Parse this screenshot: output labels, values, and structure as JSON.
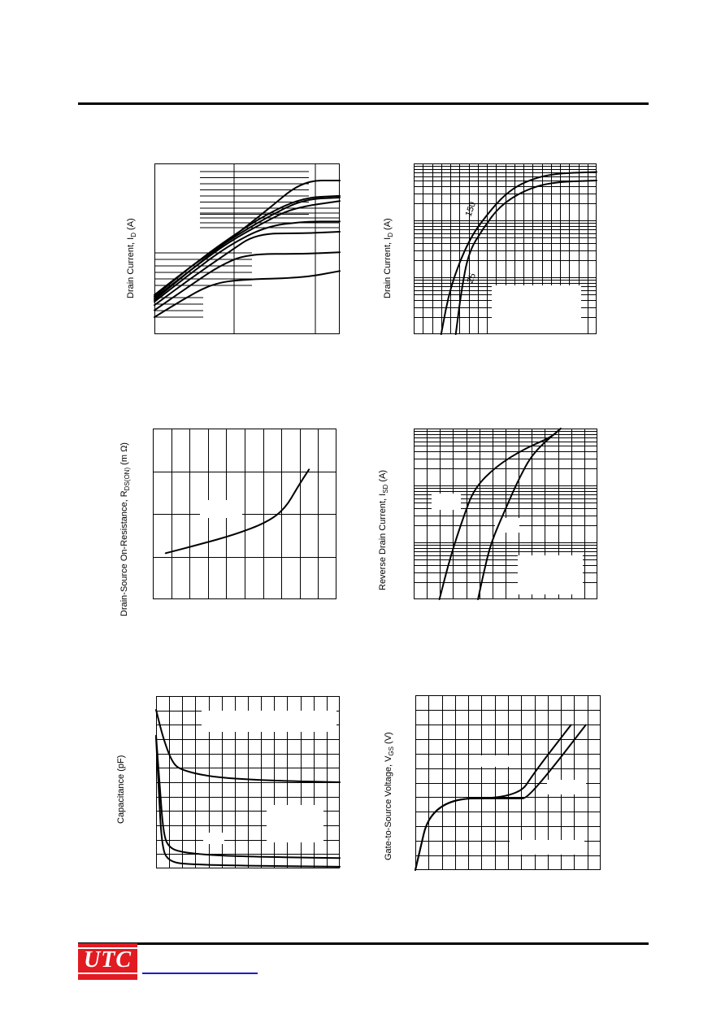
{
  "brand": {
    "logo_text": "UTC",
    "logo_color": "#e21a22",
    "link_color": "#1a1ad6"
  },
  "chart_data": [
    {
      "type": "line",
      "ylabel": "Drain Current, I",
      "ylabel_sub": "D",
      "ylabel_unit": " (A)",
      "xscale": "log",
      "yscale": "log",
      "grid": true,
      "series": [
        {
          "points": [
            [
              0,
              0.8
            ],
            [
              0.2,
              0.62
            ],
            [
              0.4,
              0.45
            ],
            [
              0.6,
              0.28
            ],
            [
              0.8,
              0.1
            ],
            [
              1,
              0.1
            ]
          ]
        },
        {
          "points": [
            [
              0,
              0.78
            ],
            [
              0.2,
              0.6
            ],
            [
              0.4,
              0.44
            ],
            [
              0.6,
              0.3
            ],
            [
              0.8,
              0.2
            ],
            [
              1,
              0.19
            ]
          ]
        },
        {
          "points": [
            [
              0,
              0.77
            ],
            [
              0.2,
              0.6
            ],
            [
              0.4,
              0.45
            ],
            [
              0.6,
              0.32
            ],
            [
              0.8,
              0.21
            ],
            [
              1,
              0.2
            ]
          ]
        },
        {
          "points": [
            [
              0,
              0.79
            ],
            [
              0.2,
              0.62
            ],
            [
              0.4,
              0.46
            ],
            [
              0.6,
              0.34
            ],
            [
              0.75,
              0.26
            ],
            [
              1,
              0.22
            ]
          ]
        },
        {
          "points": [
            [
              0,
              0.81
            ],
            [
              0.2,
              0.64
            ],
            [
              0.4,
              0.48
            ],
            [
              0.6,
              0.37
            ],
            [
              0.8,
              0.34
            ],
            [
              1,
              0.34
            ]
          ]
        },
        {
          "points": [
            [
              0,
              0.83
            ],
            [
              0.2,
              0.67
            ],
            [
              0.4,
              0.52
            ],
            [
              0.55,
              0.41
            ],
            [
              0.8,
              0.41
            ],
            [
              1,
              0.4
            ]
          ]
        },
        {
          "points": [
            [
              0,
              0.86
            ],
            [
              0.2,
              0.71
            ],
            [
              0.35,
              0.6
            ],
            [
              0.5,
              0.53
            ],
            [
              0.8,
              0.53
            ],
            [
              1,
              0.52
            ]
          ]
        },
        {
          "points": [
            [
              0,
              0.9
            ],
            [
              0.15,
              0.8
            ],
            [
              0.3,
              0.71
            ],
            [
              0.45,
              0.68
            ],
            [
              0.8,
              0.67
            ],
            [
              1,
              0.63
            ]
          ]
        }
      ]
    },
    {
      "type": "line",
      "ylabel": "Drain Current, I",
      "ylabel_sub": "D",
      "ylabel_unit": " (A)",
      "yscale": "log",
      "grid": true,
      "annotations": [
        "150",
        "25"
      ],
      "series": [
        {
          "name": "150",
          "points": [
            [
              0.15,
              1.0
            ],
            [
              0.2,
              0.72
            ],
            [
              0.3,
              0.45
            ],
            [
              0.4,
              0.3
            ],
            [
              0.5,
              0.18
            ],
            [
              0.6,
              0.11
            ],
            [
              0.75,
              0.06
            ],
            [
              1,
              0.05
            ]
          ]
        },
        {
          "name": "25",
          "points": [
            [
              0.23,
              1.0
            ],
            [
              0.26,
              0.75
            ],
            [
              0.3,
              0.52
            ],
            [
              0.38,
              0.38
            ],
            [
              0.47,
              0.25
            ],
            [
              0.6,
              0.16
            ],
            [
              0.75,
              0.11
            ],
            [
              1,
              0.1
            ]
          ]
        }
      ]
    },
    {
      "type": "line",
      "ylabel": "Drain-Source On-Resistance, R",
      "ylabel_sub": "DS(ON)",
      "ylabel_unit": " (m Ω)",
      "grid": true,
      "series": [
        {
          "points": [
            [
              0.07,
              0.73
            ],
            [
              0.25,
              0.68
            ],
            [
              0.45,
              0.62
            ],
            [
              0.62,
              0.55
            ],
            [
              0.72,
              0.47
            ],
            [
              0.79,
              0.34
            ],
            [
              0.85,
              0.24
            ]
          ]
        }
      ]
    },
    {
      "type": "line",
      "ylabel": "Reverse Drain Current, I",
      "ylabel_sub": "SD",
      "ylabel_unit": " (A)",
      "yscale": "log",
      "grid": true,
      "series": [
        {
          "points": [
            [
              0.14,
              1.0
            ],
            [
              0.2,
              0.75
            ],
            [
              0.27,
              0.52
            ],
            [
              0.33,
              0.35
            ],
            [
              0.45,
              0.22
            ],
            [
              0.6,
              0.12
            ],
            [
              0.75,
              0.05
            ],
            [
              0.8,
              0.0
            ]
          ]
        },
        {
          "points": [
            [
              0.35,
              1.0
            ],
            [
              0.38,
              0.85
            ],
            [
              0.42,
              0.67
            ],
            [
              0.5,
              0.47
            ],
            [
              0.57,
              0.3
            ],
            [
              0.65,
              0.14
            ],
            [
              0.8,
              0.0
            ]
          ]
        }
      ]
    },
    {
      "type": "line",
      "ylabel": "Capacitance (pF)",
      "ylabel_sub": "",
      "ylabel_unit": "",
      "grid": true,
      "series": [
        {
          "points": [
            [
              0,
              0.08
            ],
            [
              0.04,
              0.25
            ],
            [
              0.09,
              0.39
            ],
            [
              0.14,
              0.43
            ],
            [
              0.3,
              0.47
            ],
            [
              0.6,
              0.49
            ],
            [
              1,
              0.5
            ]
          ]
        },
        {
          "points": [
            [
              0,
              0.23
            ],
            [
              0.02,
              0.52
            ],
            [
              0.04,
              0.8
            ],
            [
              0.07,
              0.88
            ],
            [
              0.15,
              0.91
            ],
            [
              0.4,
              0.93
            ],
            [
              1,
              0.94
            ]
          ]
        },
        {
          "points": [
            [
              0,
              0.24
            ],
            [
              0.015,
              0.55
            ],
            [
              0.03,
              0.85
            ],
            [
              0.06,
              0.96
            ],
            [
              0.2,
              0.98
            ],
            [
              1,
              0.99
            ]
          ]
        }
      ]
    },
    {
      "type": "line",
      "ylabel": "Gate-to-Source Voltage, V",
      "ylabel_sub": "GS",
      "ylabel_unit": " (V)",
      "grid": true,
      "series": [
        {
          "points": [
            [
              0,
              1.0
            ],
            [
              0.09,
              0.59
            ],
            [
              0.55,
              0.59
            ],
            [
              0.65,
              0.43
            ],
            [
              0.84,
              0.17
            ]
          ]
        },
        {
          "points": [
            [
              0,
              1.0
            ],
            [
              0.09,
              0.59
            ],
            [
              0.56,
              0.59
            ],
            [
              0.6,
              0.59
            ],
            [
              0.73,
              0.43
            ],
            [
              0.92,
              0.17
            ]
          ]
        }
      ]
    }
  ]
}
